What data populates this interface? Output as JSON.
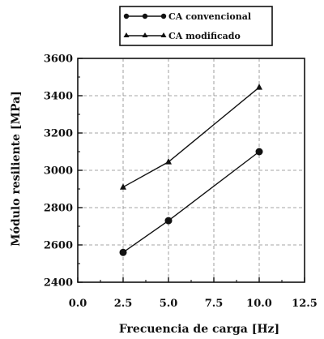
{
  "chart_data": {
    "type": "line",
    "x": [
      2.5,
      5.0,
      10.0
    ],
    "series": [
      {
        "name": "CA convencional",
        "marker": "circle",
        "values": [
          2560,
          2730,
          3100
        ]
      },
      {
        "name": "CA modificado",
        "marker": "triangle",
        "values": [
          2910,
          3045,
          3445
        ]
      }
    ],
    "xlabel": "Frecuencia de carga [Hz]",
    "ylabel": "Módulo resiliente [MPa]",
    "xlim": [
      0.0,
      12.5
    ],
    "ylim": [
      2400,
      3600
    ],
    "xticks": [
      "0.0",
      "2.5",
      "5.0",
      "7.5",
      "10.0",
      "12.5"
    ],
    "yticks": [
      "2400",
      "2600",
      "2800",
      "3000",
      "3200",
      "3400",
      "3600"
    ],
    "grid": true,
    "legend_position": "top"
  },
  "colors": {
    "line": "#111111",
    "grid": "#888888"
  }
}
